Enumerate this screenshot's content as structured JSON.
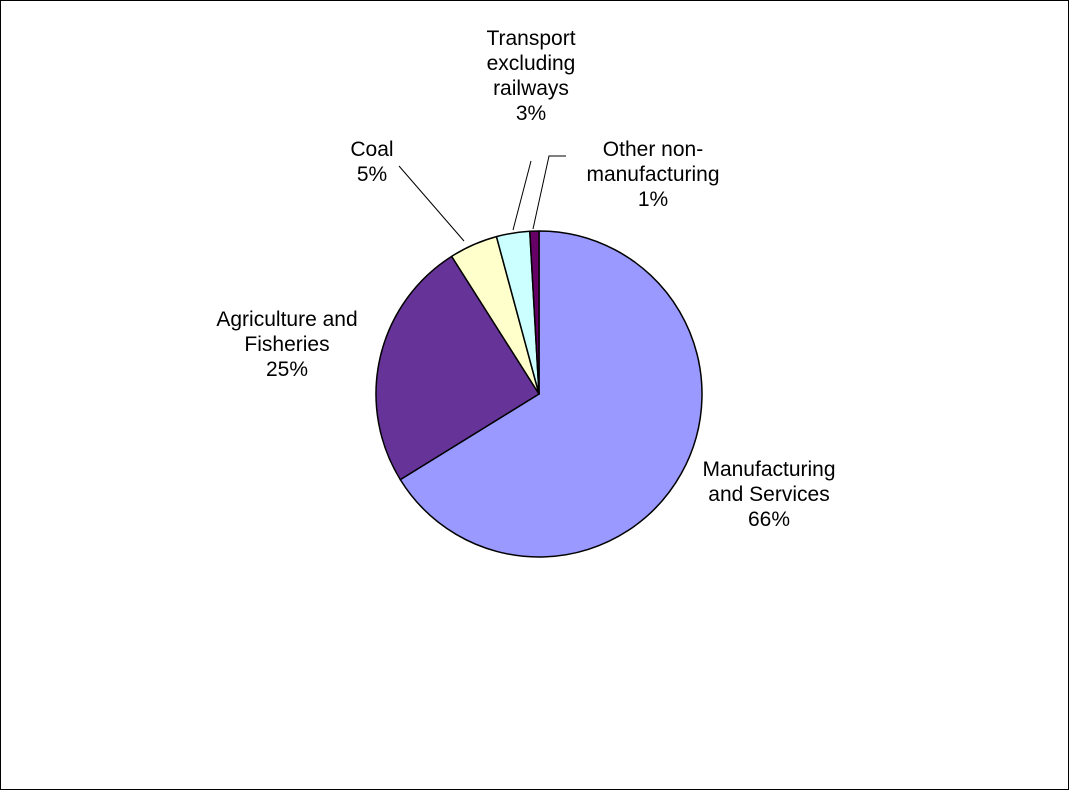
{
  "chart_data": {
    "type": "pie",
    "title": "",
    "slices": [
      {
        "name": "Manufacturing and Services",
        "label_lines": [
          "Manufacturing",
          "and Services"
        ],
        "pct_label": "66%",
        "value": 66.2,
        "color": "#9999ff"
      },
      {
        "name": "Agriculture and Fisheries",
        "label_lines": [
          "Agriculture and",
          "Fisheries"
        ],
        "pct_label": "25%",
        "value": 24.8,
        "color": "#663399"
      },
      {
        "name": "Coal",
        "label_lines": [
          "Coal"
        ],
        "pct_label": "5%",
        "value": 4.8,
        "color": "#ffffcc"
      },
      {
        "name": "Transport excluding railways",
        "label_lines": [
          "Transport",
          "excluding",
          "railways"
        ],
        "pct_label": "3%",
        "value": 3.3,
        "color": "#ccffff"
      },
      {
        "name": "Other non-manufacturing",
        "label_lines": [
          "Other non-",
          "manufacturing"
        ],
        "pct_label": "1%",
        "value": 0.9,
        "color": "#660066"
      }
    ],
    "start_angle_deg": 0,
    "direction": "clockwise",
    "legend": "none",
    "slice_outline_color": "#000000"
  }
}
